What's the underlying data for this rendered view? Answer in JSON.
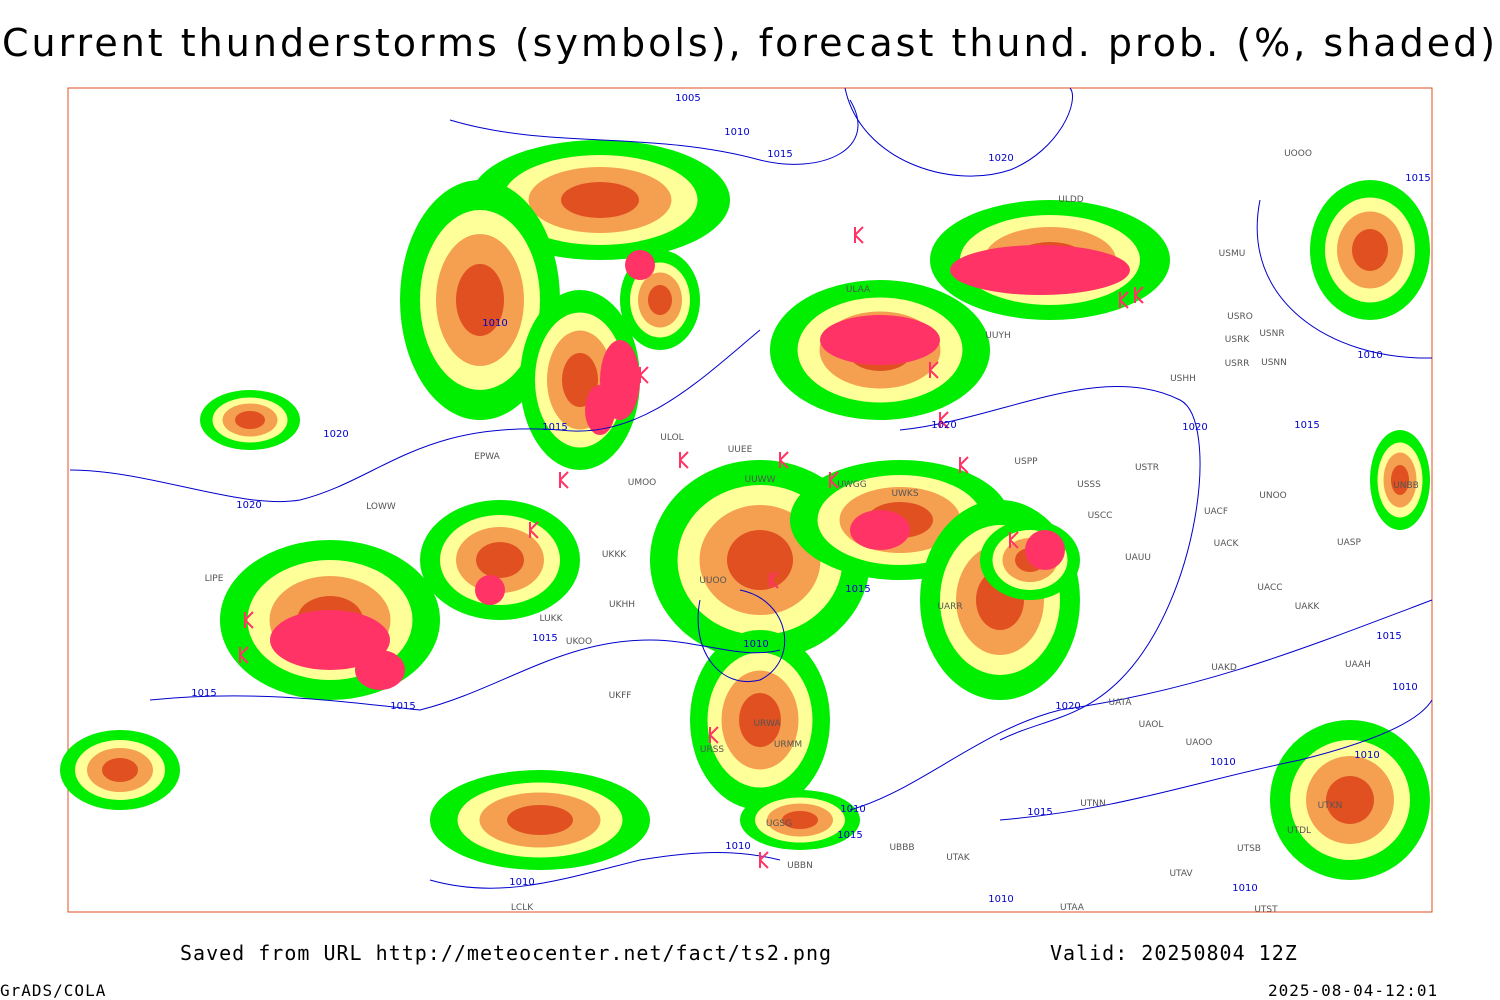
{
  "header": {
    "title": "Current thunderstorms (symbols), forecast thund. prob. (%, shaded)"
  },
  "map": {
    "isobar_labels": [
      "1005",
      "1010",
      "1015",
      "1020",
      "1015",
      "1010",
      "1010",
      "1020",
      "1015",
      "1020",
      "1020",
      "1015",
      "1020",
      "1015",
      "1015",
      "1010",
      "1015",
      "1015",
      "1015",
      "1020",
      "1010",
      "1010",
      "1010",
      "1010",
      "1015",
      "1015",
      "1010",
      "1010",
      "1010",
      "1010"
    ],
    "station_labels": [
      "UOOO",
      "ULDD",
      "USMU",
      "ULAA",
      "UUYH",
      "USRO",
      "USRK",
      "USNR",
      "USRR",
      "USNN",
      "USHH",
      "ULOL",
      "UUEE",
      "EPWA",
      "USPP",
      "USTR",
      "USSS",
      "UMOO",
      "UUWW",
      "UWGG",
      "UWKS",
      "USCC",
      "UACF",
      "UNOO",
      "UNBB",
      "LOWW",
      "UKKK",
      "UACK",
      "UASP",
      "UAUU",
      "LIPE",
      "UUOO",
      "UACC",
      "UAKK",
      "LUKK",
      "UARR",
      "UKOO",
      "UKHH",
      "UAKD",
      "UAAH",
      "UKFF",
      "UATA",
      "UAOL",
      "URWA",
      "UAOO",
      "UTNN",
      "UBBB",
      "UTAK",
      "UTAV",
      "UTSB",
      "UTDL",
      "UTKN",
      "UTAA",
      "UTST",
      "LCLK",
      "UGSG",
      "UBBN",
      "URMM",
      "URSS"
    ]
  },
  "footer": {
    "source": "Saved from URL http://meteocenter.net/fact/ts2.png",
    "valid": "Valid: 20250804 12Z",
    "software": "GrADS/COLA",
    "timestamp": "2025-08-04-12:01"
  }
}
